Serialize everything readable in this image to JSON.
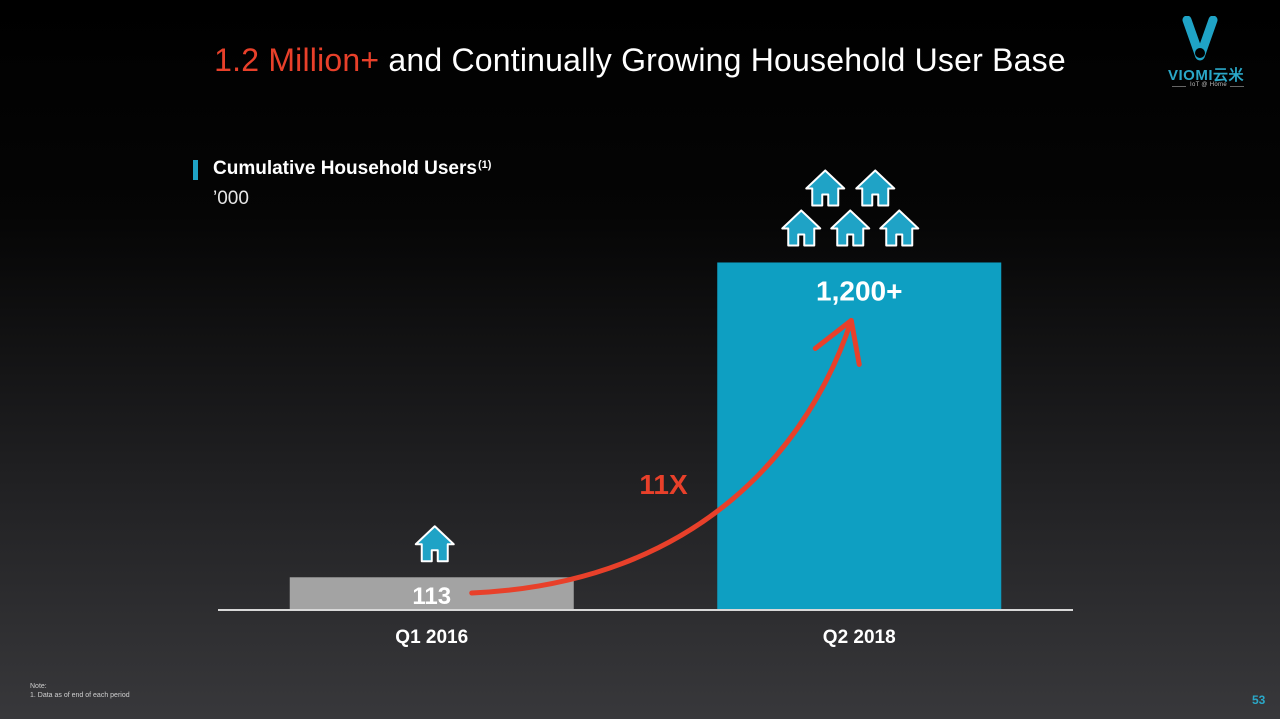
{
  "slide": {
    "title_highlight": "1.2 Million+",
    "title_rest": " and Continually Growing Household User Base",
    "logo_word": "VIOMI云米",
    "logo_sub": "IoT @ Home",
    "note_heading": "Note:",
    "note_line": "1. Data as of end of each period",
    "page_number": "53",
    "colors": {
      "title_highlight": "#e8402a",
      "brand": "#1fa3c6",
      "arrow": "#e8402a",
      "bar_q1": "#a3a3a3",
      "bar_q2": "#0e9fc2"
    }
  },
  "chart_data": {
    "type": "bar",
    "title": "Cumulative Household Users",
    "title_footnote": "(1)",
    "ylabel": "'000",
    "unit_display": "’000",
    "categories": [
      "Q1 2016",
      "Q2 2018"
    ],
    "values": [
      113,
      1200
    ],
    "data_labels": [
      "113",
      "1,200+"
    ],
    "ylim": [
      0,
      1250
    ],
    "grid": false,
    "house_icons": [
      1,
      5
    ],
    "annotation": {
      "text": "11X",
      "type": "growth-arrow",
      "from": "Q1 2016",
      "to": "Q2 2018"
    }
  }
}
